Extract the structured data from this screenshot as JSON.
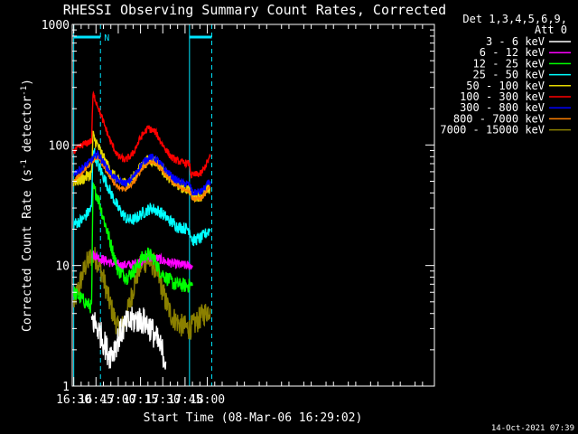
{
  "chart_data": {
    "type": "line",
    "title": "RHESSI Observing Summary Count Rates, Corrected",
    "xlabel": "Start Time (08-Mar-06 16:29:02)",
    "ylabel_main": "Corrected Count Rate (s",
    "ylabel_sup1": "-1",
    "ylabel_mid": " detector",
    "ylabel_sup2": "-1",
    "ylabel_end": ")",
    "yscale": "log",
    "ylim": [
      1,
      1000
    ],
    "xlim_min": [
      989,
      1233
    ],
    "xticks": [
      {
        "label": "16:30",
        "min": 990
      },
      {
        "label": "16:45",
        "min": 1005
      },
      {
        "label": "17:00",
        "min": 1020
      },
      {
        "label": "17:15",
        "min": 1035
      },
      {
        "label": "17:30",
        "min": 1050
      },
      {
        "label": "17:45",
        "min": 1065
      },
      {
        "label": "18:00",
        "min": 1080
      }
    ],
    "yticks": [
      {
        "label": "1",
        "v": 1
      },
      {
        "label": "10",
        "v": 10
      },
      {
        "label": "100",
        "v": 100
      },
      {
        "label": "1000",
        "v": 1000
      }
    ],
    "legend_header": [
      "Det 1,3,4,5,6,9,",
      "Att 0"
    ],
    "legend_position": "right",
    "flags": {
      "night_label": "N",
      "night_intervals": [
        [
          990,
          1008
        ],
        [
          1068,
          1083
        ]
      ],
      "cyan_vlines": [
        990,
        1068
      ],
      "dashed_vlines": [
        1008,
        1083
      ]
    },
    "footer_date": "14-Oct-2021 07:39",
    "series": [
      {
        "name": "3 - 6 keV",
        "color": "#ffffff",
        "points": [
          [
            1002,
            3.6
          ],
          [
            1005,
            3.2
          ],
          [
            1008,
            2.7
          ],
          [
            1011,
            2.2
          ],
          [
            1014,
            1.8
          ],
          [
            1017,
            2.0
          ],
          [
            1020,
            2.5
          ],
          [
            1023,
            3.0
          ],
          [
            1026,
            3.3
          ],
          [
            1030,
            3.5
          ],
          [
            1034,
            3.6
          ],
          [
            1038,
            3.4
          ],
          [
            1042,
            3.0
          ],
          [
            1046,
            2.4
          ],
          [
            1050,
            1.9
          ],
          [
            1052,
            1.6
          ]
        ],
        "noise": 0.12
      },
      {
        "name": "6 - 12 keV",
        "color": "#ff00ff",
        "points": [
          [
            1002,
            12.5
          ],
          [
            1008,
            11.5
          ],
          [
            1015,
            10.5
          ],
          [
            1022,
            10.0
          ],
          [
            1030,
            10.2
          ],
          [
            1036,
            11.0
          ],
          [
            1040,
            11.8
          ],
          [
            1046,
            11.5
          ],
          [
            1052,
            10.8
          ],
          [
            1058,
            10.3
          ],
          [
            1065,
            10.0
          ],
          [
            1070,
            10.0
          ]
        ],
        "noise": 0.04
      },
      {
        "name": "12 - 25 keV",
        "color": "#00ff00",
        "points": [
          [
            990,
            6.0
          ],
          [
            1002,
            4.5
          ],
          [
            1003,
            44
          ],
          [
            1006,
            38
          ],
          [
            1010,
            25
          ],
          [
            1015,
            15
          ],
          [
            1020,
            9.0
          ],
          [
            1026,
            8.0
          ],
          [
            1032,
            9.5
          ],
          [
            1036,
            11.5
          ],
          [
            1040,
            12.5
          ],
          [
            1044,
            11.5
          ],
          [
            1048,
            9.0
          ],
          [
            1052,
            8.0
          ],
          [
            1058,
            7.0
          ],
          [
            1065,
            6.8
          ],
          [
            1070,
            6.8
          ]
        ],
        "noise": 0.06
      },
      {
        "name": "25 - 50 keV",
        "color": "#00ffff",
        "points": [
          [
            990,
            22
          ],
          [
            996,
            24
          ],
          [
            1002,
            30
          ],
          [
            1003,
            95
          ],
          [
            1006,
            70
          ],
          [
            1010,
            55
          ],
          [
            1015,
            40
          ],
          [
            1020,
            30
          ],
          [
            1026,
            24
          ],
          [
            1031,
            24
          ],
          [
            1036,
            27
          ],
          [
            1042,
            30
          ],
          [
            1048,
            28
          ],
          [
            1054,
            24
          ],
          [
            1060,
            21
          ],
          [
            1068,
            20
          ],
          [
            1070,
            16
          ],
          [
            1076,
            17
          ],
          [
            1082,
            20
          ]
        ],
        "noise": 0.05
      },
      {
        "name": "50 - 100 keV",
        "color": "#e6d800",
        "points": [
          [
            990,
            50
          ],
          [
            996,
            52
          ],
          [
            1002,
            58
          ],
          [
            1003,
            120
          ],
          [
            1006,
            100
          ],
          [
            1010,
            78
          ],
          [
            1015,
            60
          ],
          [
            1020,
            50
          ],
          [
            1026,
            48
          ],
          [
            1031,
            55
          ],
          [
            1036,
            68
          ],
          [
            1041,
            76
          ],
          [
            1046,
            72
          ],
          [
            1052,
            58
          ],
          [
            1058,
            48
          ],
          [
            1064,
            44
          ],
          [
            1068,
            43
          ],
          [
            1070,
            38
          ],
          [
            1076,
            38
          ],
          [
            1082,
            44
          ]
        ],
        "noise": 0.05
      },
      {
        "name": "100 - 300 keV",
        "color": "#ff0000",
        "points": [
          [
            990,
            88
          ],
          [
            996,
            100
          ],
          [
            1002,
            108
          ],
          [
            1003,
            265
          ],
          [
            1006,
            215
          ],
          [
            1010,
            155
          ],
          [
            1015,
            105
          ],
          [
            1020,
            80
          ],
          [
            1025,
            75
          ],
          [
            1030,
            85
          ],
          [
            1035,
            115
          ],
          [
            1040,
            138
          ],
          [
            1045,
            128
          ],
          [
            1050,
            100
          ],
          [
            1056,
            78
          ],
          [
            1062,
            72
          ],
          [
            1068,
            70
          ],
          [
            1069,
            56
          ],
          [
            1076,
            58
          ],
          [
            1082,
            80
          ]
        ],
        "noise": 0.03
      },
      {
        "name": "300 - 800 keV",
        "color": "#0000ff",
        "points": [
          [
            990,
            58
          ],
          [
            996,
            65
          ],
          [
            1002,
            75
          ],
          [
            1006,
            85
          ],
          [
            1010,
            72
          ],
          [
            1015,
            58
          ],
          [
            1020,
            50
          ],
          [
            1026,
            48
          ],
          [
            1031,
            56
          ],
          [
            1036,
            70
          ],
          [
            1041,
            80
          ],
          [
            1046,
            76
          ],
          [
            1052,
            62
          ],
          [
            1058,
            52
          ],
          [
            1064,
            48
          ],
          [
            1068,
            47
          ],
          [
            1070,
            40
          ],
          [
            1076,
            41
          ],
          [
            1082,
            50
          ]
        ],
        "noise": 0.03
      },
      {
        "name": "800 - 7000 keV",
        "color": "#ff8000",
        "points": [
          [
            990,
            50
          ],
          [
            996,
            60
          ],
          [
            1002,
            72
          ],
          [
            1006,
            80
          ],
          [
            1010,
            68
          ],
          [
            1015,
            52
          ],
          [
            1020,
            44
          ],
          [
            1026,
            43
          ],
          [
            1031,
            50
          ],
          [
            1036,
            64
          ],
          [
            1041,
            73
          ],
          [
            1046,
            70
          ],
          [
            1052,
            57
          ],
          [
            1058,
            47
          ],
          [
            1064,
            43
          ],
          [
            1068,
            42
          ],
          [
            1070,
            36
          ],
          [
            1076,
            36
          ],
          [
            1082,
            45
          ]
        ],
        "noise": 0.02
      },
      {
        "name": "7000 - 15000 keV",
        "color": "#8b8000",
        "points": [
          [
            990,
            4.8
          ],
          [
            994,
            7.0
          ],
          [
            998,
            10.0
          ],
          [
            1002,
            12.0
          ],
          [
            1005,
            11.5
          ],
          [
            1008,
            9.5
          ],
          [
            1011,
            7.0
          ],
          [
            1014,
            5.0
          ],
          [
            1017,
            3.8
          ],
          [
            1020,
            3.0
          ],
          [
            1024,
            3.2
          ],
          [
            1028,
            5.0
          ],
          [
            1032,
            8.0
          ],
          [
            1036,
            10.5
          ],
          [
            1040,
            11.0
          ],
          [
            1044,
            10.0
          ],
          [
            1048,
            7.5
          ],
          [
            1052,
            5.0
          ],
          [
            1056,
            3.8
          ],
          [
            1062,
            3.2
          ],
          [
            1068,
            3.0
          ],
          [
            1072,
            3.3
          ],
          [
            1076,
            3.8
          ],
          [
            1082,
            4.4
          ]
        ],
        "noise": 0.1
      }
    ]
  }
}
